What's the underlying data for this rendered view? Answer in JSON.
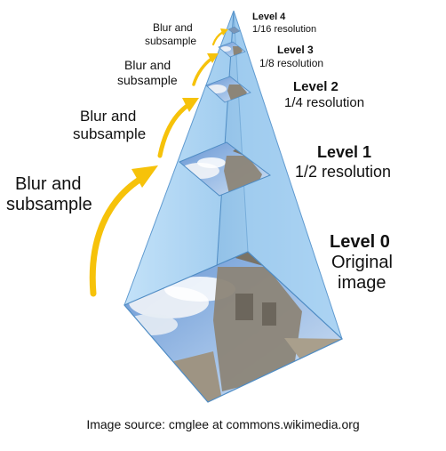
{
  "levels": [
    {
      "title": "Level 4",
      "subtitle": "1/16 resolution"
    },
    {
      "title": "Level 3",
      "subtitle": "1/8 resolution"
    },
    {
      "title": "Level 2",
      "subtitle": "1/4 resolution"
    },
    {
      "title": "Level 1",
      "subtitle": "1/2 resolution"
    },
    {
      "title": "Level 0",
      "subtitle_lines": [
        "Original",
        "image"
      ]
    }
  ],
  "blur_labels": [
    [
      "Blur and",
      "subsample"
    ],
    [
      "Blur and",
      "subsample"
    ],
    [
      "Blur and",
      "subsample"
    ],
    [
      "Blur and",
      "subsample"
    ]
  ],
  "source": "Image source: cmglee at commons.wikimedia.org",
  "colors": {
    "pyramid_fill": "#9ecdf2",
    "pyramid_edge": "#6fa7d6",
    "arrow": "#f6c20a",
    "sky": "#7aa6d8",
    "cloud": "#f2f4f7",
    "building": "#8c8578",
    "text": "#111111"
  }
}
